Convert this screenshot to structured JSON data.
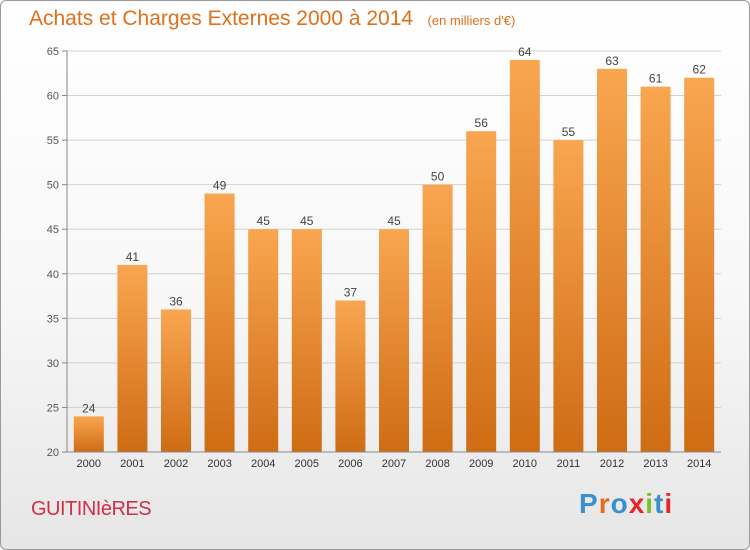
{
  "header": {
    "title": "Achats et Charges Externes 2000 à 2014",
    "subtitle": "(en milliers d'€)"
  },
  "footer": {
    "commune": "GUITINIèRES",
    "logo": "Proxiti"
  },
  "colors": {
    "bar_light": "#f9a650",
    "bar_dark": "#cf6c14",
    "title": "#e0701a",
    "commune": "#d0304a",
    "logo_letters": [
      "#3a8fd0",
      "#e86a1d",
      "#3a8fd0",
      "#e8262a",
      "#7cbf2a",
      "#3a8fd0",
      "#e8262a"
    ]
  },
  "chart_data": {
    "type": "bar",
    "categories": [
      "2000",
      "2001",
      "2002",
      "2003",
      "2004",
      "2005",
      "2006",
      "2007",
      "2008",
      "2009",
      "2010",
      "2011",
      "2012",
      "2013",
      "2014"
    ],
    "values": [
      24,
      41,
      36,
      49,
      45,
      45,
      37,
      45,
      50,
      56,
      64,
      55,
      63,
      61,
      62
    ],
    "ylim": [
      20,
      65
    ],
    "yticks": [
      20,
      25,
      30,
      35,
      40,
      45,
      50,
      55,
      60,
      65
    ],
    "grid": true,
    "data_labels": true
  }
}
